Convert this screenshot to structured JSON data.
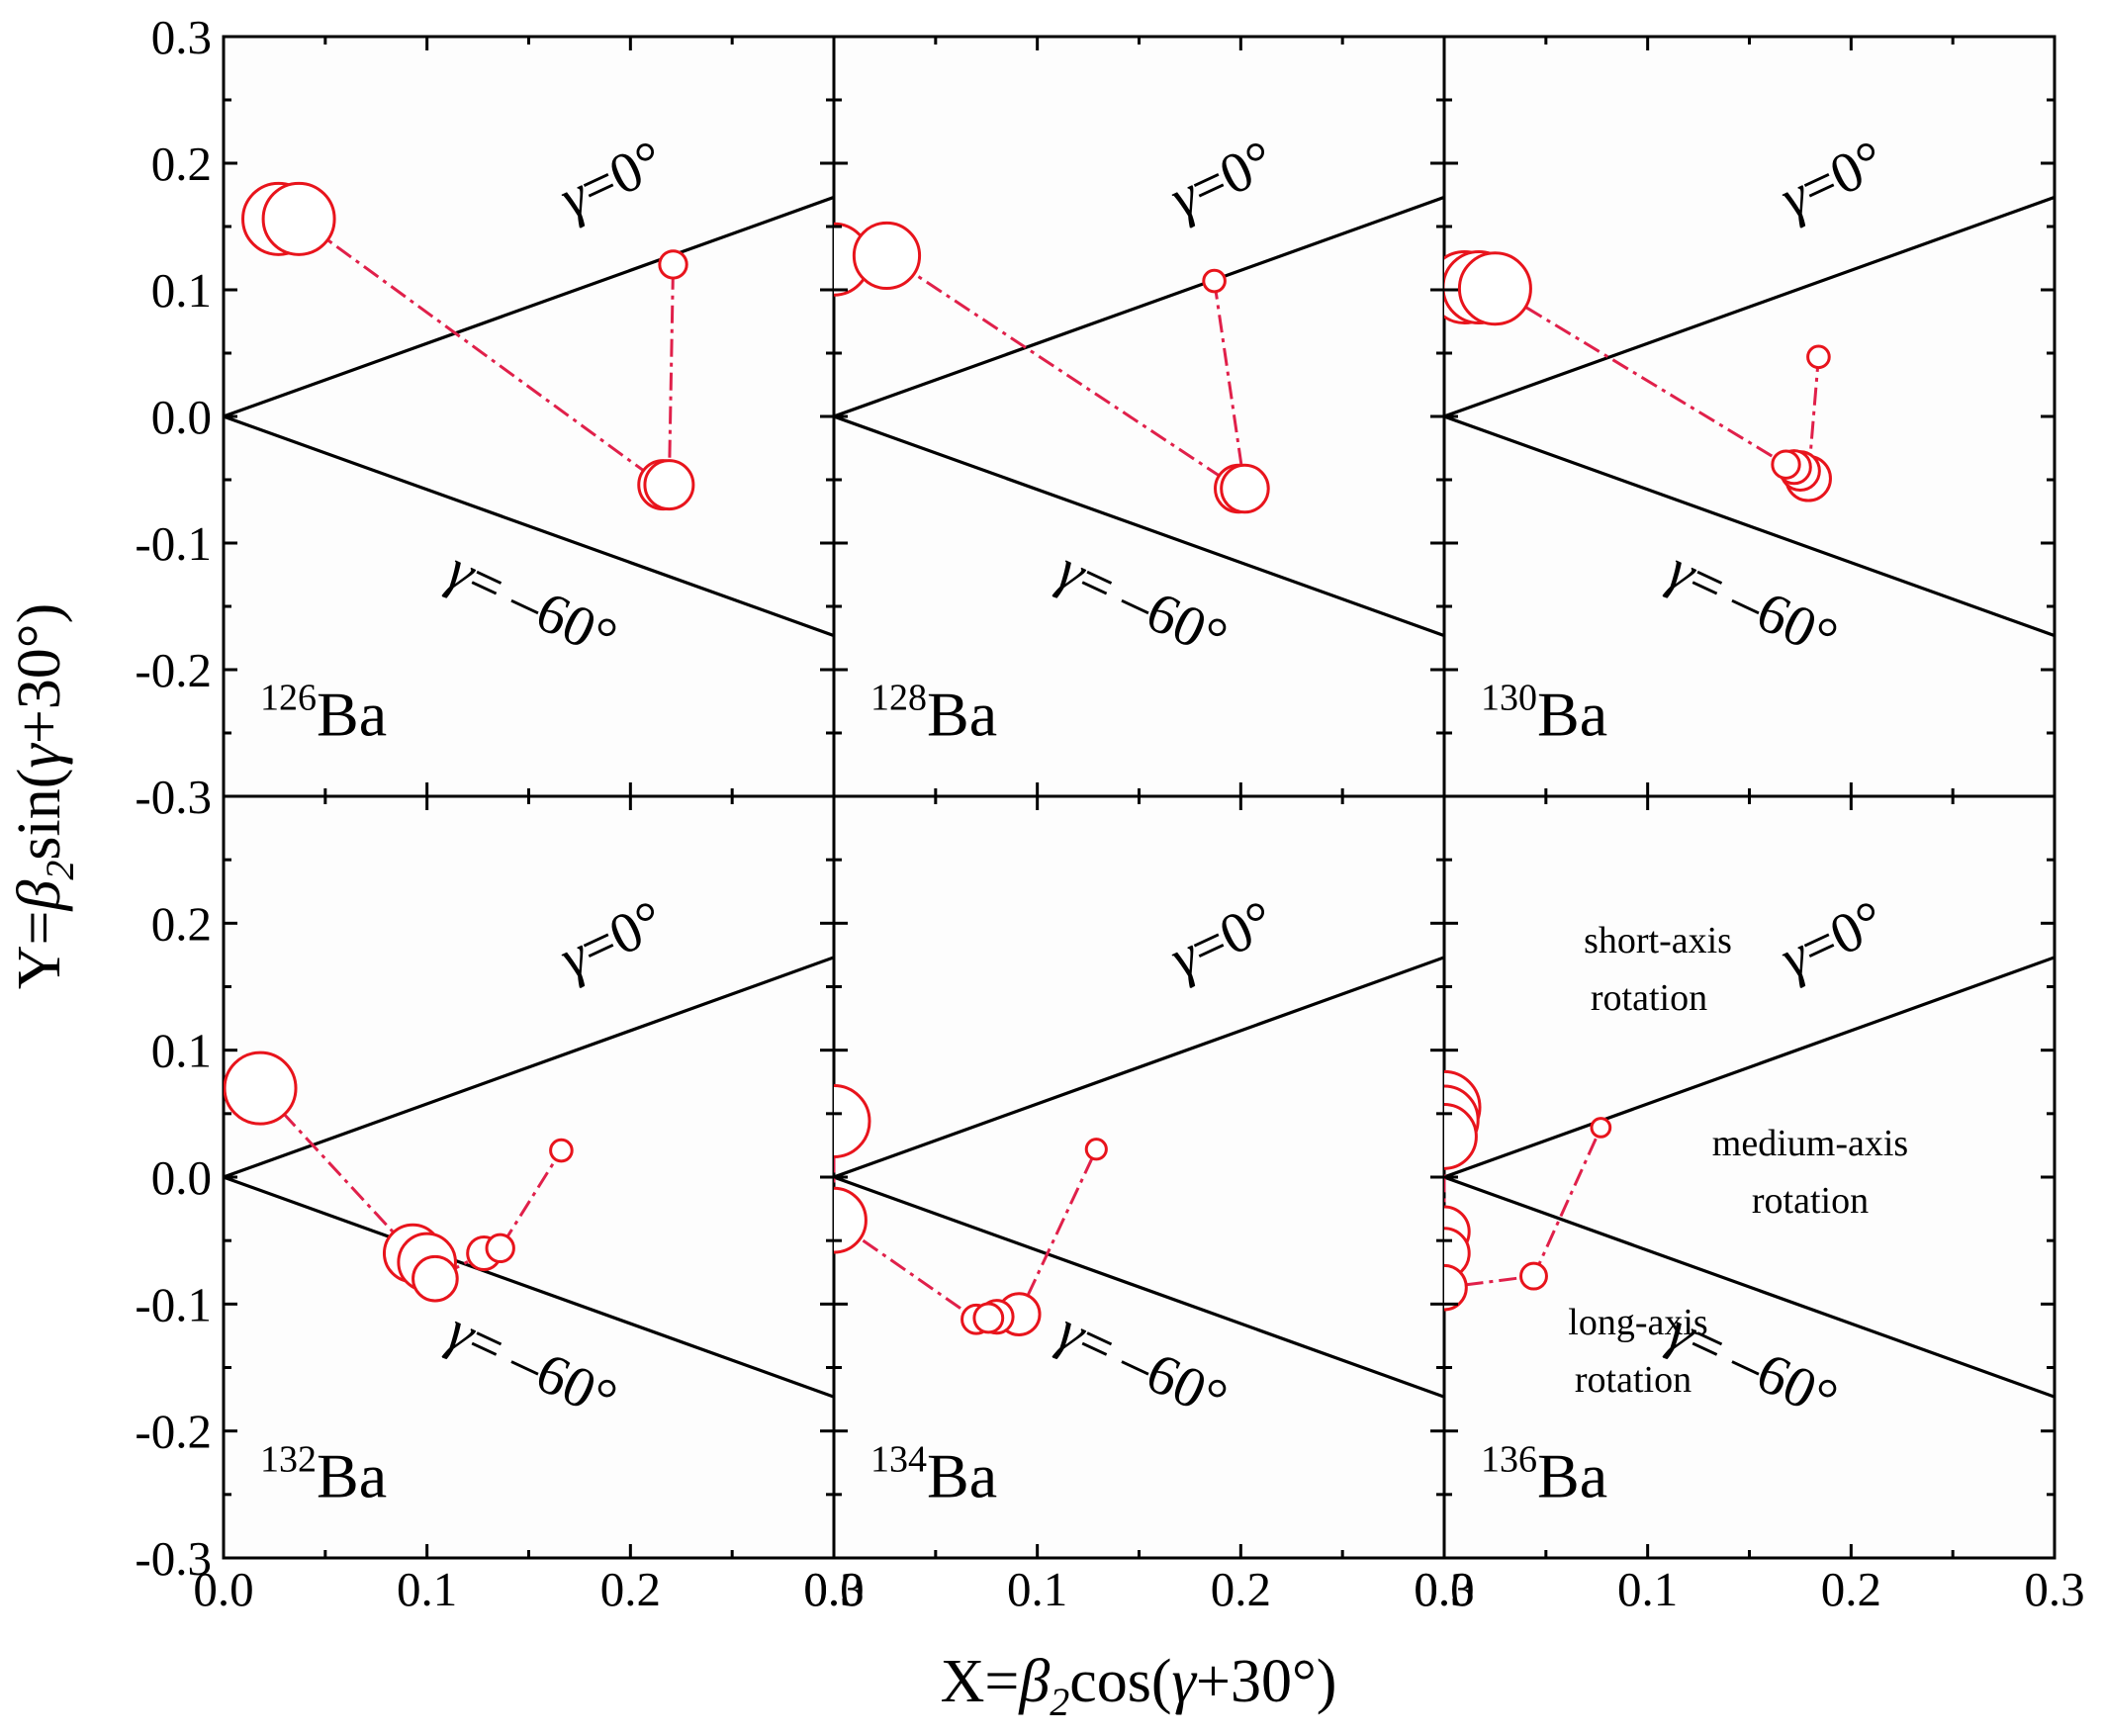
{
  "axes": {
    "xlabel_prefix": "X=",
    "xlabel_beta": "β",
    "xlabel_sub": "2",
    "xlabel_func": "cos(",
    "xlabel_gamma": "γ",
    "xlabel_tail": "+30°)",
    "ylabel_prefix": "Y=",
    "ylabel_beta": "β",
    "ylabel_sub": "2",
    "ylabel_func": "sin(",
    "ylabel_gamma": "γ",
    "ylabel_tail": "+30°)"
  },
  "labels": {
    "gamma_symbol": "γ",
    "gamma0_text": "=0°",
    "gamma60_text": "= –60°",
    "short_axis_l1": "short-axis",
    "short_axis_l2": "rotation",
    "medium_axis_l1": "medium-axis",
    "medium_axis_l2": "rotation",
    "long_axis_l1": "long-axis",
    "long_axis_l2": "rotation"
  },
  "colors": {
    "marker_edge": "#e8141c",
    "trajectory": "#e0204a",
    "sector_lines": "#000000"
  },
  "chart_data": {
    "type": "scatter",
    "layout": "2x3 panels sharing axes",
    "xlim": [
      0.0,
      0.3
    ],
    "ylim": [
      -0.3,
      0.3
    ],
    "xticks": [
      "0.0",
      "0.1",
      "0.2",
      "0.3"
    ],
    "yticks": [
      "0.3",
      "0.2",
      "0.1",
      "0.0",
      "-0.1",
      "-0.2",
      "-0.3"
    ],
    "sector_lines": [
      {
        "label": "γ=0°",
        "slope": 0.577
      },
      {
        "label": "γ=–60°",
        "slope": -0.577
      }
    ],
    "panels": [
      {
        "nucleus_mass": "126",
        "nucleus_symbol": "Ba",
        "points": [
          {
            "x": 0.027,
            "y": 0.156,
            "r": 1.0
          },
          {
            "x": 0.037,
            "y": 0.156,
            "r": 1.0
          },
          {
            "x": 0.216,
            "y": -0.054,
            "r": 0.68
          },
          {
            "x": 0.219,
            "y": -0.054,
            "r": 0.68
          },
          {
            "x": 0.221,
            "y": 0.12,
            "r": 0.38
          }
        ]
      },
      {
        "nucleus_mass": "128",
        "nucleus_symbol": "Ba",
        "points": [
          {
            "x": 0.0,
            "y": 0.124,
            "r": 1.0
          },
          {
            "x": 0.026,
            "y": 0.127,
            "r": 0.92
          },
          {
            "x": 0.199,
            "y": -0.057,
            "r": 0.66
          },
          {
            "x": 0.202,
            "y": -0.057,
            "r": 0.66
          },
          {
            "x": 0.187,
            "y": 0.107,
            "r": 0.3
          }
        ]
      },
      {
        "nucleus_mass": "130",
        "nucleus_symbol": "Ba",
        "points": [
          {
            "x": 0.01,
            "y": 0.102,
            "r": 1.0
          },
          {
            "x": 0.017,
            "y": 0.102,
            "r": 1.0
          },
          {
            "x": 0.025,
            "y": 0.101,
            "r": 1.0
          },
          {
            "x": 0.168,
            "y": -0.038,
            "r": 0.38
          },
          {
            "x": 0.172,
            "y": -0.04,
            "r": 0.46
          },
          {
            "x": 0.175,
            "y": -0.043,
            "r": 0.54
          },
          {
            "x": 0.179,
            "y": -0.049,
            "r": 0.62
          },
          {
            "x": 0.184,
            "y": 0.047,
            "r": 0.3
          }
        ]
      },
      {
        "nucleus_mass": "132",
        "nucleus_symbol": "Ba",
        "points": [
          {
            "x": 0.018,
            "y": 0.07,
            "r": 1.0
          },
          {
            "x": 0.093,
            "y": -0.06,
            "r": 0.8
          },
          {
            "x": 0.1,
            "y": -0.067,
            "r": 0.8
          },
          {
            "x": 0.104,
            "y": -0.08,
            "r": 0.62
          },
          {
            "x": 0.128,
            "y": -0.06,
            "r": 0.46
          },
          {
            "x": 0.136,
            "y": -0.056,
            "r": 0.38
          },
          {
            "x": 0.166,
            "y": 0.021,
            "r": 0.3
          }
        ]
      },
      {
        "nucleus_mass": "134",
        "nucleus_symbol": "Ba",
        "points": [
          {
            "x": 0.0,
            "y": 0.044,
            "r": 1.0
          },
          {
            "x": 0.0,
            "y": -0.034,
            "r": 0.9
          },
          {
            "x": 0.07,
            "y": -0.112,
            "r": 0.4
          },
          {
            "x": 0.076,
            "y": -0.111,
            "r": 0.4
          },
          {
            "x": 0.08,
            "y": -0.11,
            "r": 0.46
          },
          {
            "x": 0.091,
            "y": -0.108,
            "r": 0.58
          },
          {
            "x": 0.129,
            "y": 0.022,
            "r": 0.28
          }
        ]
      },
      {
        "nucleus_mass": "136",
        "nucleus_symbol": "Ba",
        "points": [
          {
            "x": 0.0,
            "y": 0.055,
            "r": 1.0
          },
          {
            "x": 0.0,
            "y": 0.045,
            "r": 0.95
          },
          {
            "x": 0.0,
            "y": 0.032,
            "r": 0.9
          },
          {
            "x": 0.0,
            "y": -0.043,
            "r": 0.7
          },
          {
            "x": 0.0,
            "y": -0.06,
            "r": 0.7
          },
          {
            "x": 0.0,
            "y": -0.087,
            "r": 0.62
          },
          {
            "x": 0.044,
            "y": -0.078,
            "r": 0.36
          },
          {
            "x": 0.077,
            "y": 0.039,
            "r": 0.26
          }
        ]
      }
    ]
  }
}
